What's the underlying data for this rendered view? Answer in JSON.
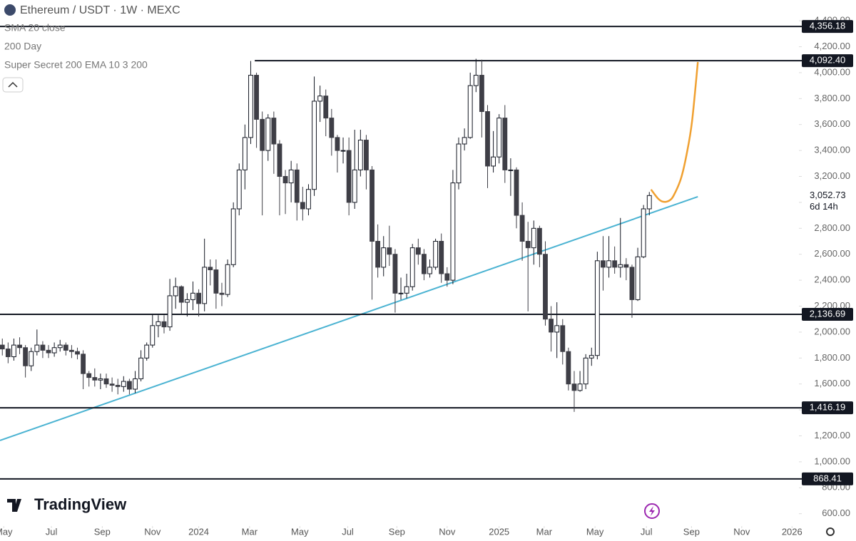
{
  "chart_data": {
    "type": "candlestick",
    "title": "Ethereum / USDT · 1W · MEXC",
    "indicators": [
      "SMA 20 close",
      "200 Day",
      "Super Secret 200 EMA 10 3 200"
    ],
    "brand": "TradingView",
    "x": [
      0,
      1,
      2,
      3,
      4,
      5,
      6,
      7,
      8,
      9,
      10,
      11,
      12,
      13,
      14,
      15,
      16,
      17,
      18,
      19,
      20,
      21,
      22,
      23,
      24,
      25,
      26,
      27,
      28,
      29,
      30,
      31,
      32,
      33,
      34,
      35,
      36,
      37,
      38,
      39,
      40,
      41,
      42,
      43,
      44,
      45,
      46,
      47,
      48,
      49,
      50,
      51,
      52,
      53,
      54,
      55,
      56,
      57,
      58,
      59,
      60,
      61,
      62,
      63,
      64,
      65,
      66,
      67,
      68,
      69,
      70,
      71,
      72,
      73,
      74,
      75,
      76,
      77,
      78,
      79,
      80,
      81,
      82,
      83,
      84,
      85,
      86,
      87,
      88,
      89,
      90,
      91,
      92,
      93,
      94,
      95,
      96,
      97,
      98,
      99,
      100,
      101,
      102,
      103,
      104,
      105,
      106,
      107,
      108,
      109,
      110,
      111,
      112
    ],
    "open": [
      1900,
      1870,
      1810,
      1900,
      1880,
      1740,
      1850,
      1900,
      1860,
      1840,
      1880,
      1900,
      1860,
      1850,
      1830,
      1680,
      1650,
      1630,
      1640,
      1600,
      1590,
      1580,
      1620,
      1560,
      1640,
      1800,
      1900,
      2050,
      2080,
      2040,
      2280,
      2350,
      2230,
      2250,
      2300,
      2220,
      2500,
      2480,
      2300,
      2290,
      2520,
      2950,
      3250,
      3500,
      3980,
      3640,
      3400,
      3650,
      3450,
      3200,
      3150,
      3250,
      3000,
      2950,
      3100,
      3780,
      3820,
      3650,
      3500,
      3400,
      3400,
      3000,
      3250,
      3480,
      3250,
      2700,
      2500,
      2650,
      2600,
      2300,
      2300,
      2350,
      2650,
      2600,
      2450,
      2500,
      2700,
      2450,
      2400,
      3150,
      3450,
      3500,
      3900,
      3980,
      3700,
      3280,
      3350,
      3650,
      3250,
      3250,
      2900,
      2700,
      2650,
      2800,
      2600,
      2100,
      2000,
      2050,
      1850,
      1600,
      1550,
      1600,
      1800,
      1820,
      2550,
      2500,
      2550,
      2500,
      2520,
      2500,
      2250,
      2580,
      2950
    ],
    "high": [
      1950,
      1920,
      1950,
      1960,
      1900,
      1880,
      2020,
      1930,
      1900,
      1920,
      1940,
      1920,
      1900,
      1880,
      1860,
      1700,
      1720,
      1680,
      1680,
      1650,
      1640,
      1660,
      1640,
      1700,
      1860,
      1920,
      2140,
      2130,
      2130,
      2410,
      2420,
      2360,
      2300,
      2390,
      2330,
      2720,
      2560,
      2560,
      2380,
      2560,
      3000,
      3300,
      3600,
      4090,
      4000,
      3700,
      3680,
      3700,
      3480,
      3250,
      3320,
      3300,
      3120,
      3140,
      3970,
      3900,
      3870,
      3720,
      3520,
      3500,
      3500,
      3560,
      3560,
      3520,
      3280,
      2830,
      2740,
      2820,
      2640,
      2420,
      2450,
      2680,
      2720,
      2640,
      2560,
      2720,
      2760,
      2500,
      3250,
      3500,
      3570,
      4000,
      4107,
      4100,
      3750,
      3550,
      3680,
      3750,
      3340,
      3270,
      3000,
      2850,
      2860,
      2820,
      2700,
      2200,
      2230,
      2100,
      1880,
      1700,
      1700,
      1830,
      1880,
      2620,
      2740,
      2740,
      2660,
      2880,
      2570,
      2520,
      2650,
      2980,
      3080
    ],
    "low": [
      1820,
      1760,
      1780,
      1830,
      1650,
      1700,
      1820,
      1800,
      1800,
      1810,
      1850,
      1820,
      1800,
      1790,
      1560,
      1580,
      1580,
      1560,
      1570,
      1540,
      1520,
      1540,
      1520,
      1530,
      1620,
      1780,
      1880,
      1960,
      1990,
      2010,
      2180,
      2140,
      2120,
      2170,
      2120,
      2160,
      2360,
      2180,
      2200,
      2270,
      2500,
      2900,
      3100,
      3450,
      3420,
      2900,
      3320,
      3220,
      2900,
      2910,
      3000,
      2860,
      2860,
      2900,
      3050,
      3620,
      3510,
      3360,
      3230,
      3300,
      2900,
      2950,
      3200,
      3100,
      2250,
      2420,
      2430,
      2510,
      2150,
      2250,
      2260,
      2320,
      2520,
      2400,
      2420,
      2480,
      2380,
      2350,
      2370,
      3100,
      3400,
      3490,
      3850,
      3500,
      3110,
      3230,
      3300,
      3150,
      3050,
      2800,
      2550,
      2160,
      2520,
      2500,
      2050,
      1850,
      1800,
      1750,
      1550,
      1385,
      1540,
      1560,
      1740,
      1790,
      2320,
      2420,
      2450,
      2420,
      2400,
      2110,
      2240,
      2570,
      2900
    ],
    "close": [
      1870,
      1810,
      1900,
      1880,
      1740,
      1850,
      1900,
      1860,
      1840,
      1880,
      1900,
      1860,
      1850,
      1830,
      1680,
      1650,
      1630,
      1640,
      1600,
      1590,
      1580,
      1620,
      1560,
      1640,
      1800,
      1900,
      2050,
      2080,
      2040,
      2280,
      2350,
      2230,
      2250,
      2300,
      2220,
      2500,
      2480,
      2300,
      2290,
      2520,
      2950,
      3250,
      3500,
      3980,
      3640,
      3400,
      3650,
      3450,
      3200,
      3150,
      3250,
      3000,
      2950,
      3100,
      3780,
      3820,
      3650,
      3500,
      3400,
      3400,
      3000,
      3250,
      3480,
      3250,
      2700,
      2500,
      2650,
      2600,
      2300,
      2300,
      2350,
      2650,
      2600,
      2450,
      2500,
      2700,
      2450,
      2400,
      3150,
      3450,
      3500,
      3900,
      3980,
      3700,
      3280,
      3350,
      3650,
      3250,
      3250,
      2900,
      2700,
      2650,
      2800,
      2600,
      2100,
      2000,
      2050,
      1850,
      1600,
      1550,
      1600,
      1800,
      1820,
      2550,
      2500,
      2550,
      2500,
      2520,
      2500,
      2250,
      2580,
      2950,
      3052.73
    ],
    "up_color": "#ffffff",
    "down_color": "#3e3e46",
    "xlim": [
      -0.4,
      137.9
    ],
    "xticks": [
      {
        "value": 0.25,
        "label": "May"
      },
      {
        "value": 8.5,
        "label": "Jul"
      },
      {
        "value": 17.3,
        "label": "Sep"
      },
      {
        "value": 26,
        "label": "Nov"
      },
      {
        "value": 34,
        "label": "2024"
      },
      {
        "value": 42.8,
        "label": "Mar"
      },
      {
        "value": 51.5,
        "label": "May"
      },
      {
        "value": 59.8,
        "label": "Jul"
      },
      {
        "value": 68.3,
        "label": "Sep"
      },
      {
        "value": 77,
        "label": "Nov"
      },
      {
        "value": 86,
        "label": "2025"
      },
      {
        "value": 93.8,
        "label": "Mar"
      },
      {
        "value": 102.6,
        "label": "May"
      },
      {
        "value": 111.5,
        "label": "Jul"
      },
      {
        "value": 119.3,
        "label": "Sep"
      },
      {
        "value": 128,
        "label": "Nov"
      },
      {
        "value": 136.7,
        "label": "2026"
      }
    ],
    "ylim": [
      505,
      4560
    ],
    "yticks": [
      {
        "value": 600,
        "label": "600.00"
      },
      {
        "value": 800,
        "label": "800.00"
      },
      {
        "value": 1000,
        "label": "1,000.00"
      },
      {
        "value": 1200,
        "label": "1,200.00"
      },
      {
        "value": 1400,
        "label": "1,400.00"
      },
      {
        "value": 1600,
        "label": "1,600.00"
      },
      {
        "value": 1800,
        "label": "1,800.00"
      },
      {
        "value": 2000,
        "label": "2,000.00"
      },
      {
        "value": 2200,
        "label": "2,200.00"
      },
      {
        "value": 2400,
        "label": "2,400.00"
      },
      {
        "value": 2600,
        "label": "2,600.00"
      },
      {
        "value": 2800,
        "label": "2,800.00"
      },
      {
        "value": 3000,
        "label": "3,000.00"
      },
      {
        "value": 3200,
        "label": "3,200.00"
      },
      {
        "value": 3400,
        "label": "3,400.00"
      },
      {
        "value": 3600,
        "label": "3,600.00"
      },
      {
        "value": 3800,
        "label": "3,800.00"
      },
      {
        "value": 4000,
        "label": "4,000.00"
      },
      {
        "value": 4200,
        "label": "4,200.00"
      },
      {
        "value": 4400,
        "label": "4,400.00"
      }
    ],
    "levels": [
      {
        "value": 4356.18,
        "label": "4,356.18"
      },
      {
        "value": 4092.4,
        "label": "4,092.40",
        "from_x": 43.7
      },
      {
        "value": 2136.69,
        "label": "2,136.69"
      },
      {
        "value": 1416.19,
        "label": "1,416.19"
      },
      {
        "value": 868.41,
        "label": "868.41"
      }
    ],
    "last_price": {
      "value": 3052.73,
      "label": "3,052.73",
      "countdown": "6d 14h"
    },
    "trendline": {
      "x": [
        -0.4,
        120.4
      ],
      "values": [
        1165,
        3044
      ],
      "color": "#4bb3d2"
    },
    "projection": {
      "x": [
        112.3,
        113.5,
        114.4,
        115.5,
        116.3,
        117.5,
        118.5,
        119.4,
        120.4
      ],
      "values": [
        3099,
        3030,
        3005,
        3015,
        3060,
        3187,
        3380,
        3626,
        4082
      ],
      "color": "#f0a030"
    }
  }
}
